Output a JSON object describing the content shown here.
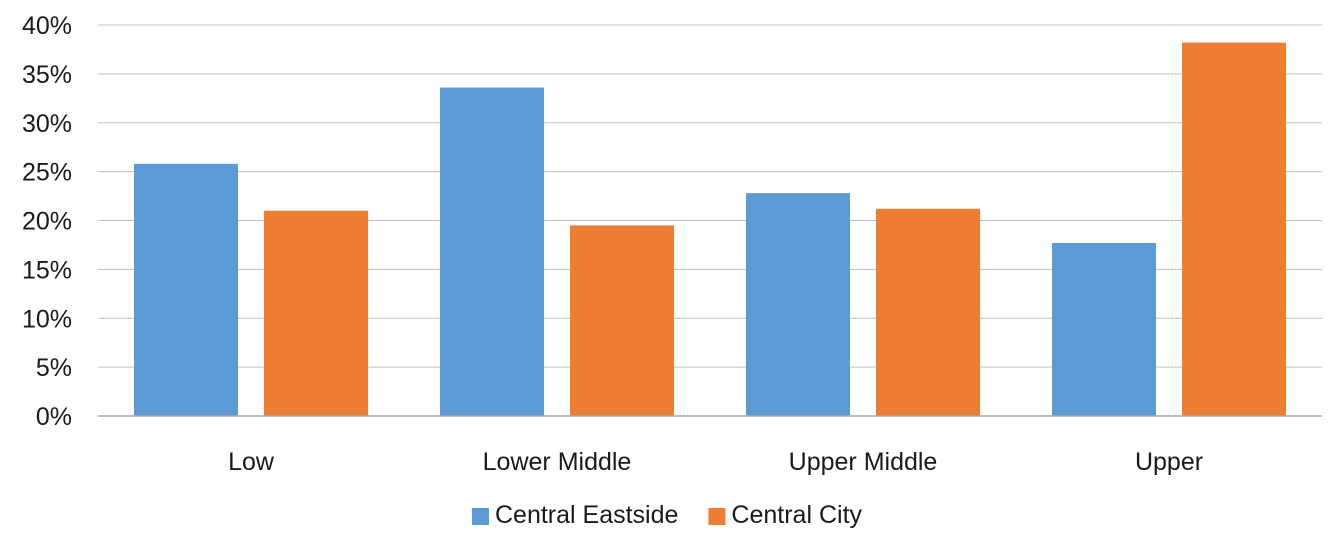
{
  "chart_data": {
    "type": "bar",
    "title": "",
    "xlabel": "",
    "ylabel": "",
    "categories": [
      "Low",
      "Lower Middle",
      "Upper Middle",
      "Upper"
    ],
    "series": [
      {
        "name": "Central Eastside",
        "color": "#5b9bd5",
        "values": [
          25.8,
          33.6,
          22.8,
          17.7
        ]
      },
      {
        "name": "Central City",
        "color": "#ed7d31",
        "values": [
          21.0,
          19.5,
          21.2,
          38.2
        ]
      }
    ],
    "ylim": [
      0,
      40
    ],
    "yticks": [
      0,
      5,
      10,
      15,
      20,
      25,
      30,
      35,
      40
    ],
    "ytick_labels": [
      "0%",
      "5%",
      "10%",
      "15%",
      "20%",
      "25%",
      "30%",
      "35%",
      "40%"
    ],
    "grid": true,
    "legend_position": "bottom-center"
  }
}
